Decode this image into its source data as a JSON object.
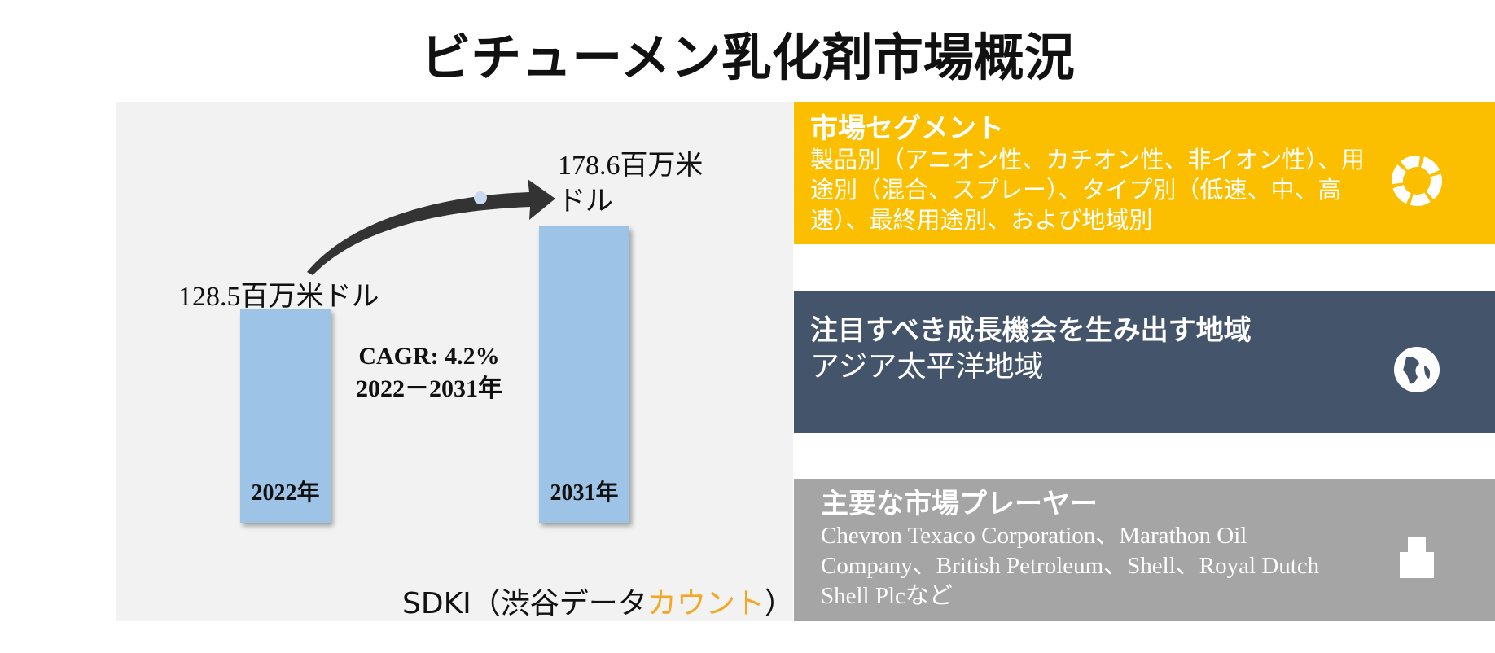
{
  "title": "ビチューメン乳化剤市場概況",
  "chart": {
    "bars": [
      {
        "year": "2022年",
        "value": 128.5,
        "value_label": "128.5百万米ドル"
      },
      {
        "year": "2031年",
        "value": 178.6,
        "value_label": "178.6百万米ドル"
      }
    ],
    "cagr": "CAGR: 4.2%",
    "period": "2022－2031年"
  },
  "source": {
    "prefix": "SDKI（渋谷データ",
    "highlight": "カウント",
    "suffix": "）"
  },
  "panels": [
    {
      "heading": "市場セグメント",
      "body": "製品別（アニオン性、カチオン性、非イオン性）、用途別（混合、スプレー）、タイプ別（低速、中、高速）、最終用途別、および地域別"
    },
    {
      "heading": "注目すべき成長機会を生み出す地域",
      "body": "アジア太平洋地域"
    },
    {
      "heading": "主要な市場プレーヤー",
      "body": "Chevron Texaco Corporation、Marathon Oil Company、British Petroleum、Shell、Royal Dutch Shell Plcなど"
    }
  ]
}
